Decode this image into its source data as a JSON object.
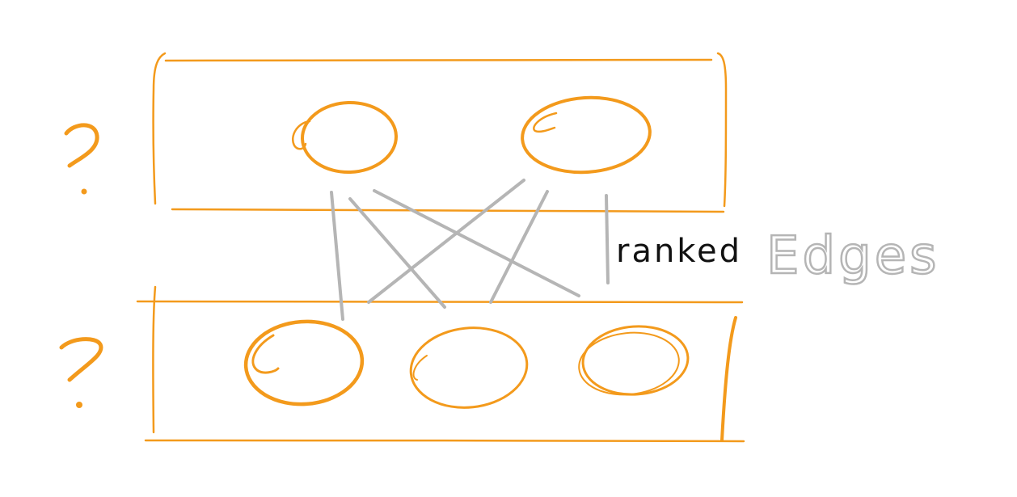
{
  "diagram": {
    "top_rank": {
      "question_mark": "?",
      "node_count": 2
    },
    "bottom_rank": {
      "question_mark": "?",
      "node_count": 3
    },
    "edge_label": {
      "prefix": "ranked",
      "word": "Edges"
    }
  },
  "colors": {
    "rank": "#f39a1c",
    "edge": "#b5b5b5",
    "label_dark": "#111111",
    "label_light": "#b5b5b5",
    "background": "#ffffff"
  }
}
